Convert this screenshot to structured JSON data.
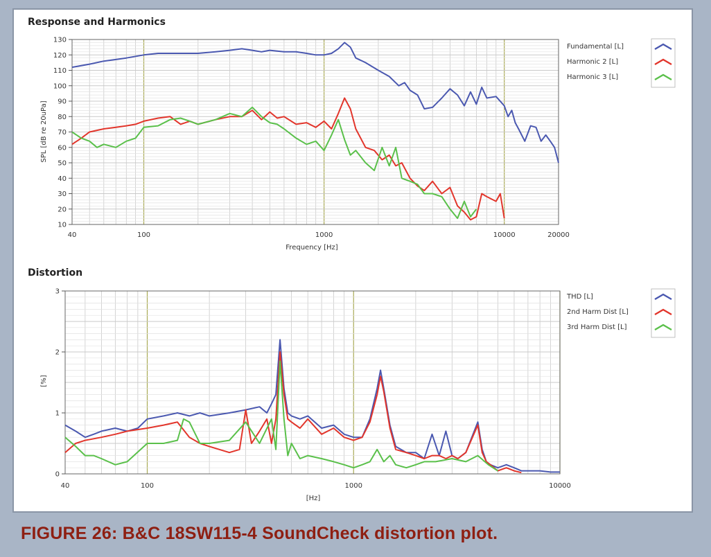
{
  "caption": "FIGURE 26: B&C 18SW115-4 SoundCheck distortion plot.",
  "colors": {
    "blue": "#4a58b0",
    "red": "#e2352b",
    "green": "#5ac04a",
    "decade_grid": "#a9aa55",
    "grid": "#c9c9c9",
    "minor_grid": "#e2e2e2"
  },
  "chart_data": [
    {
      "type": "line",
      "title": "Response and Harmonics",
      "xlabel": "Frequency [Hz]",
      "ylabel": "SPL [dB re 20uPa]",
      "xscale": "log",
      "xlim": [
        40,
        20000
      ],
      "ylim": [
        10,
        130
      ],
      "xticks": [
        40,
        100,
        1000,
        10000,
        20000
      ],
      "xtick_labels": [
        "40",
        "100",
        "1000",
        "10000",
        "20000"
      ],
      "yticks": [
        10,
        20,
        30,
        40,
        50,
        60,
        70,
        80,
        90,
        100,
        110,
        120,
        130
      ],
      "ytick_labels": [
        "10",
        "20",
        "30",
        "40",
        "50",
        "60",
        "70",
        "80",
        "90",
        "100",
        "110",
        "120",
        "130"
      ],
      "grid": true,
      "legend_position": "right",
      "series": [
        {
          "name": "Fundamental [L]",
          "color": "#4a58b0",
          "x": [
            40,
            50,
            60,
            70,
            80,
            100,
            120,
            150,
            200,
            250,
            300,
            350,
            400,
            450,
            500,
            600,
            700,
            800,
            900,
            1000,
            1100,
            1200,
            1300,
            1400,
            1500,
            1700,
            2000,
            2300,
            2600,
            2800,
            3000,
            3300,
            3600,
            4000,
            4500,
            5000,
            5500,
            6000,
            6500,
            7000,
            7500,
            8000,
            9000,
            10000,
            10500,
            11000,
            11500,
            12000,
            13000,
            14000,
            15000,
            16000,
            17000,
            18000,
            19000,
            20000
          ],
          "y": [
            112,
            114,
            116,
            117,
            118,
            120,
            121,
            121,
            121,
            122,
            123,
            124,
            123,
            122,
            123,
            122,
            122,
            121,
            120,
            120,
            121,
            124,
            128,
            125,
            118,
            115,
            110,
            106,
            100,
            102,
            97,
            94,
            85,
            86,
            92,
            98,
            94,
            87,
            96,
            88,
            99,
            92,
            93,
            87,
            80,
            84,
            76,
            72,
            64,
            74,
            73,
            64,
            68,
            64,
            60,
            50
          ]
        },
        {
          "name": "Harmonic 2 [L]",
          "color": "#e2352b",
          "x": [
            40,
            45,
            50,
            60,
            70,
            80,
            90,
            100,
            120,
            140,
            160,
            180,
            200,
            250,
            300,
            350,
            400,
            450,
            500,
            550,
            600,
            700,
            800,
            900,
            1000,
            1100,
            1200,
            1300,
            1400,
            1500,
            1700,
            1900,
            2100,
            2300,
            2500,
            2700,
            3000,
            3300,
            3600,
            4000,
            4500,
            5000,
            5500,
            6000,
            6500,
            7000,
            7500,
            8000,
            9000,
            9500,
            10000
          ],
          "y": [
            62,
            66,
            70,
            72,
            73,
            74,
            75,
            77,
            79,
            80,
            75,
            77,
            75,
            78,
            80,
            80,
            84,
            78,
            83,
            79,
            80,
            75,
            76,
            73,
            77,
            72,
            82,
            92,
            85,
            72,
            60,
            58,
            52,
            55,
            48,
            50,
            40,
            35,
            32,
            38,
            30,
            34,
            22,
            18,
            13,
            15,
            30,
            28,
            25,
            30,
            14
          ]
        },
        {
          "name": "Harmonic 3 [L]",
          "color": "#5ac04a",
          "x": [
            40,
            45,
            50,
            55,
            60,
            70,
            80,
            90,
            100,
            120,
            140,
            160,
            180,
            200,
            250,
            300,
            350,
            400,
            450,
            500,
            550,
            600,
            700,
            800,
            900,
            1000,
            1100,
            1200,
            1300,
            1400,
            1500,
            1700,
            1900,
            2100,
            2300,
            2500,
            2700,
            3000,
            3300,
            3600,
            4000,
            4500,
            5000,
            5500,
            6000,
            6500,
            7000
          ],
          "y": [
            70,
            66,
            64,
            60,
            62,
            60,
            64,
            66,
            73,
            74,
            78,
            79,
            77,
            75,
            78,
            82,
            80,
            86,
            80,
            76,
            75,
            72,
            66,
            62,
            64,
            58,
            68,
            78,
            65,
            55,
            58,
            50,
            45,
            60,
            48,
            60,
            40,
            38,
            36,
            30,
            30,
            28,
            20,
            14,
            25,
            15,
            20
          ]
        }
      ]
    },
    {
      "type": "line",
      "title": "Distortion",
      "xlabel": "[Hz]",
      "ylabel": "[%]",
      "xscale": "log",
      "xlim": [
        40,
        10000
      ],
      "ylim": [
        0,
        3
      ],
      "xticks": [
        40,
        100,
        1000,
        10000
      ],
      "xtick_labels": [
        "40",
        "100",
        "1000",
        "10000"
      ],
      "yticks": [
        0,
        1,
        2,
        3
      ],
      "ytick_labels": [
        "0",
        "1",
        "2",
        "3"
      ],
      "grid": true,
      "legend_position": "right",
      "series": [
        {
          "name": "THD [L]",
          "color": "#4a58b0",
          "x": [
            40,
            45,
            50,
            55,
            60,
            70,
            80,
            90,
            100,
            120,
            140,
            160,
            180,
            200,
            250,
            300,
            350,
            380,
            400,
            420,
            440,
            460,
            480,
            500,
            550,
            600,
            700,
            800,
            900,
            1000,
            1100,
            1200,
            1300,
            1350,
            1400,
            1500,
            1600,
            1800,
            2000,
            2200,
            2400,
            2600,
            2800,
            3000,
            3200,
            3500,
            4000,
            4200,
            4400,
            4600,
            5000,
            5500,
            6000,
            6500,
            7000,
            8000,
            9000,
            10000
          ],
          "y": [
            0.8,
            0.7,
            0.6,
            0.65,
            0.7,
            0.75,
            0.7,
            0.75,
            0.9,
            0.95,
            1.0,
            0.95,
            1.0,
            0.95,
            1.0,
            1.05,
            1.1,
            1.0,
            1.15,
            1.3,
            2.2,
            1.4,
            1.0,
            0.95,
            0.9,
            0.95,
            0.75,
            0.8,
            0.65,
            0.6,
            0.6,
            0.9,
            1.4,
            1.7,
            1.4,
            0.8,
            0.45,
            0.35,
            0.35,
            0.25,
            0.65,
            0.3,
            0.7,
            0.3,
            0.25,
            0.35,
            0.85,
            0.4,
            0.2,
            0.15,
            0.1,
            0.15,
            0.1,
            0.05,
            0.05,
            0.05,
            0.03,
            0.03
          ]
        },
        {
          "name": "2nd Harm Dist [L]",
          "color": "#e2352b",
          "x": [
            40,
            45,
            50,
            60,
            70,
            80,
            100,
            120,
            140,
            160,
            180,
            200,
            250,
            280,
            300,
            320,
            350,
            380,
            400,
            420,
            440,
            460,
            480,
            500,
            550,
            600,
            700,
            800,
            900,
            1000,
            1100,
            1200,
            1300,
            1350,
            1400,
            1500,
            1600,
            1800,
            2000,
            2200,
            2400,
            2600,
            2800,
            3000,
            3200,
            3500,
            4000,
            4200,
            4400,
            4600,
            5000,
            5500,
            6000,
            6500
          ],
          "y": [
            0.35,
            0.5,
            0.55,
            0.6,
            0.65,
            0.7,
            0.75,
            0.8,
            0.85,
            0.6,
            0.5,
            0.45,
            0.35,
            0.4,
            1.05,
            0.5,
            0.7,
            0.9,
            0.5,
            0.9,
            2.0,
            1.3,
            0.9,
            0.85,
            0.75,
            0.9,
            0.65,
            0.75,
            0.6,
            0.55,
            0.6,
            0.85,
            1.3,
            1.6,
            1.35,
            0.75,
            0.4,
            0.35,
            0.3,
            0.25,
            0.3,
            0.3,
            0.25,
            0.3,
            0.25,
            0.35,
            0.8,
            0.35,
            0.2,
            0.15,
            0.05,
            0.1,
            0.05,
            0.02
          ]
        },
        {
          "name": "3rd Harm Dist [L]",
          "color": "#5ac04a",
          "x": [
            40,
            45,
            50,
            55,
            60,
            70,
            80,
            100,
            120,
            140,
            150,
            160,
            180,
            200,
            250,
            300,
            350,
            400,
            420,
            440,
            460,
            480,
            500,
            550,
            600,
            700,
            800,
            900,
            1000,
            1100,
            1200,
            1300,
            1400,
            1500,
            1600,
            1800,
            2000,
            2200,
            2500,
            3000,
            3500,
            4000,
            4500,
            5000
          ],
          "y": [
            0.6,
            0.45,
            0.3,
            0.3,
            0.25,
            0.15,
            0.2,
            0.5,
            0.5,
            0.55,
            0.9,
            0.85,
            0.5,
            0.5,
            0.55,
            0.85,
            0.5,
            0.9,
            0.4,
            1.85,
            0.9,
            0.3,
            0.5,
            0.25,
            0.3,
            0.25,
            0.2,
            0.15,
            0.1,
            0.15,
            0.2,
            0.4,
            0.2,
            0.3,
            0.15,
            0.1,
            0.15,
            0.2,
            0.2,
            0.25,
            0.2,
            0.3,
            0.15,
            0.05
          ]
        }
      ]
    }
  ]
}
